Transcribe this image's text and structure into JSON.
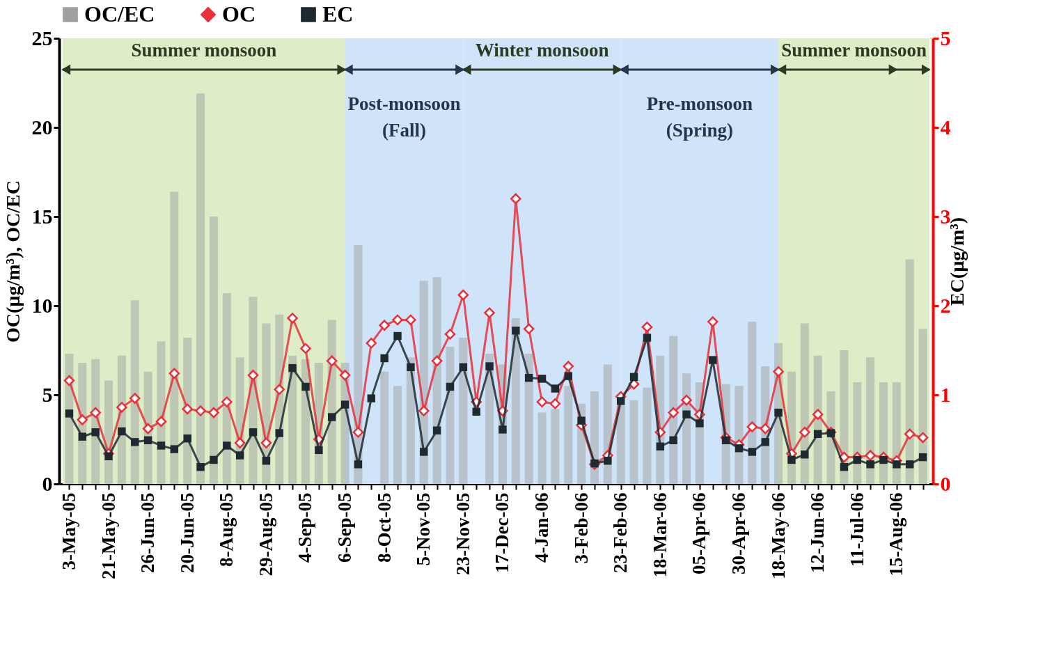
{
  "chart_data": {
    "type": "bar",
    "categories": [
      "3-May-05",
      null,
      null,
      "21-May-05",
      null,
      null,
      "26-Jun-05",
      null,
      null,
      "20-Jun-05",
      null,
      null,
      "8-Aug-05",
      null,
      null,
      "29-Aug-05",
      null,
      null,
      "4-Sep-05",
      null,
      null,
      "6-Sep-05",
      null,
      null,
      "8-Oct-05",
      null,
      null,
      "5-Nov-05",
      null,
      null,
      "23-Nov-05",
      null,
      null,
      "17-Dec-05",
      null,
      null,
      "4-Jan-06",
      null,
      null,
      "3-Feb-06",
      null,
      null,
      "23-Feb-06",
      null,
      null,
      "18-Mar-06",
      null,
      null,
      "05-Apr-06",
      null,
      null,
      "30-Apr-06",
      null,
      null,
      "18-May-06",
      null,
      null,
      "12-Jun-06",
      null,
      null,
      "11-Jul-06",
      null,
      null,
      "15-Aug-06",
      null,
      null
    ],
    "series": [
      {
        "name": "OC/EC",
        "color": "#a0a0a0",
        "values": [
          7.3,
          6.8,
          7.0,
          5.8,
          7.2,
          10.3,
          6.3,
          8.0,
          16.4,
          8.2,
          21.9,
          15.0,
          10.7,
          7.1,
          10.5,
          9.0,
          9.5,
          7.2,
          7.0,
          6.8,
          9.2,
          6.8,
          13.4,
          null,
          6.3,
          5.5,
          7.1,
          11.4,
          11.6,
          7.7,
          8.2,
          null,
          7.3,
          6.7,
          9.3,
          7.3,
          4.0,
          4.2,
          5.5,
          4.5,
          5.2,
          6.7,
          4.4,
          4.7,
          5.4,
          7.2,
          8.3,
          6.2,
          5.7,
          null,
          5.6,
          5.5,
          9.1,
          6.6,
          7.9,
          6.3,
          9.0,
          7.2,
          5.2,
          7.5,
          5.7,
          7.1,
          5.7,
          5.7,
          12.6,
          8.7
        ]
      },
      {
        "name": "OC",
        "type": "line",
        "color": "#e8303c",
        "marker": "diamond",
        "values": [
          5.8,
          3.6,
          4.0,
          1.7,
          4.3,
          4.8,
          3.1,
          3.5,
          6.2,
          4.2,
          4.1,
          4.0,
          4.6,
          2.3,
          6.1,
          2.3,
          5.3,
          9.3,
          7.6,
          2.5,
          6.9,
          6.1,
          2.9,
          7.9,
          8.9,
          9.2,
          9.2,
          4.1,
          6.9,
          8.4,
          10.6,
          4.6,
          9.6,
          4.1,
          16.0,
          8.7,
          4.6,
          4.5,
          6.6,
          3.3,
          1.1,
          1.6,
          4.9,
          5.6,
          8.8,
          2.9,
          4.0,
          4.7,
          3.9,
          9.1,
          2.6,
          2.2,
          3.2,
          3.1,
          6.3,
          1.7,
          2.9,
          3.9,
          2.9,
          1.5,
          1.5,
          1.6,
          1.5,
          1.3,
          2.8,
          2.6
        ]
      },
      {
        "name": "EC",
        "type": "line",
        "axis": "y2",
        "color": "#1e2a30",
        "marker": "square",
        "values": [
          0.79,
          0.53,
          0.58,
          0.31,
          0.59,
          0.47,
          0.49,
          0.43,
          0.39,
          0.51,
          0.19,
          0.27,
          0.43,
          0.32,
          0.58,
          0.26,
          0.57,
          1.3,
          1.09,
          0.38,
          0.75,
          0.89,
          0.22,
          0.96,
          1.41,
          1.66,
          1.31,
          0.36,
          0.6,
          1.09,
          1.31,
          0.81,
          1.32,
          0.61,
          1.72,
          1.19,
          1.18,
          1.07,
          1.21,
          0.71,
          0.23,
          0.26,
          0.93,
          1.2,
          1.64,
          0.42,
          0.49,
          0.78,
          0.68,
          1.39,
          0.49,
          0.4,
          0.36,
          0.47,
          0.8,
          0.27,
          0.33,
          0.56,
          0.57,
          0.19,
          0.27,
          0.22,
          0.27,
          0.22,
          0.22,
          0.3
        ]
      }
    ],
    "ylabel": "OC(µg/m³), OC/EC",
    "y2label": "EC(µg/m³)",
    "ylim": [
      0,
      25
    ],
    "yticks": [
      0,
      5,
      10,
      15,
      20,
      25
    ],
    "y2lim": [
      0,
      5
    ],
    "y2ticks": [
      0,
      1,
      2,
      3,
      4,
      5
    ],
    "bands": [
      {
        "axis": "x",
        "from": "3-May-05",
        "to": "6-Sep-05",
        "label": "Summer monsoon",
        "color": "#ddedc8"
      },
      {
        "axis": "x",
        "from": "6-Sep-05",
        "to": "23-Nov-05",
        "label": "Post-monsoon\n(Fall)",
        "color": "#cfe4f8"
      },
      {
        "axis": "x",
        "from": "23-Nov-05",
        "to": "23-Feb-06",
        "label": "Winter monsoon",
        "color": "#cfe4f8"
      },
      {
        "axis": "x",
        "from": "23-Feb-06",
        "to": "18-May-06",
        "label": "Pre-monsoon\n(Spring)",
        "color": "#cfe4f8"
      },
      {
        "axis": "x",
        "from": "18-May-06",
        "to": "15-Aug-06",
        "label": "Summer monsoon",
        "color": "#ddedc8"
      }
    ],
    "legend": "top",
    "grid": false
  }
}
